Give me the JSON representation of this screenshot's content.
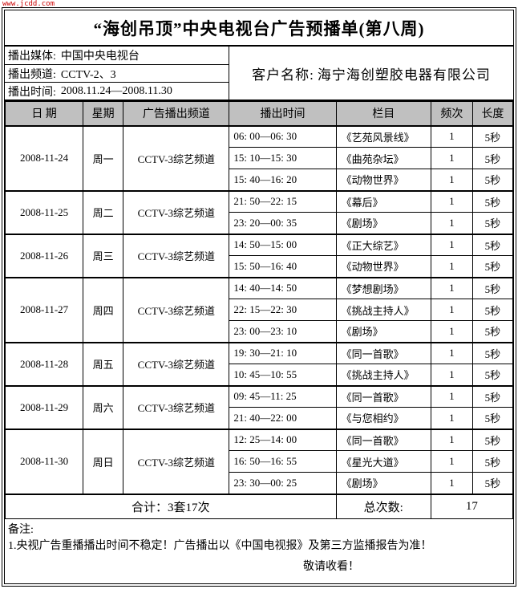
{
  "watermark": "www.jcdd.com",
  "title": "“海创吊顶”中央电视台广告预播单(第八周)",
  "info": {
    "media_label": "播出媒体:",
    "media_value": "中国中央电视台",
    "channel_label": "播出频道:",
    "channel_value": "CCTV-2、3",
    "time_label": "播出时间:",
    "time_value": "2008.11.24—2008.11.30",
    "client_label": "客户名称:",
    "client_value": "海宁海创塑胶电器有限公司"
  },
  "table": {
    "columns": [
      "日  期",
      "星期",
      "广告播出频道",
      "播出时间",
      "栏目",
      "频次",
      "长度"
    ],
    "days": [
      {
        "date": "2008-11-24",
        "week": "周一",
        "channel": "CCTV-3综艺频道",
        "slots": [
          {
            "time": "06: 00—06: 30",
            "program": "《艺苑风景线》",
            "freq": "1",
            "dur": "5秒"
          },
          {
            "time": "15: 10—15: 30",
            "program": "《曲苑杂坛》",
            "freq": "1",
            "dur": "5秒"
          },
          {
            "time": "15: 40—16: 20",
            "program": "《动物世界》",
            "freq": "1",
            "dur": "5秒"
          }
        ]
      },
      {
        "date": "2008-11-25",
        "week": "周二",
        "channel": "CCTV-3综艺频道",
        "slots": [
          {
            "time": "21: 50—22: 15",
            "program": "《幕后》",
            "freq": "1",
            "dur": "5秒"
          },
          {
            "time": "23: 20—00: 35",
            "program": "《剧场》",
            "freq": "1",
            "dur": "5秒"
          }
        ]
      },
      {
        "date": "2008-11-26",
        "week": "周三",
        "channel": "CCTV-3综艺频道",
        "slots": [
          {
            "time": "14: 50—15: 00",
            "program": "《正大综艺》",
            "freq": "1",
            "dur": "5秒"
          },
          {
            "time": "15: 50—16: 40",
            "program": "《动物世界》",
            "freq": "1",
            "dur": "5秒"
          }
        ]
      },
      {
        "date": "2008-11-27",
        "week": "周四",
        "channel": "CCTV-3综艺频道",
        "slots": [
          {
            "time": "14: 40—14: 50",
            "program": "《梦想剧场》",
            "freq": "1",
            "dur": "5秒"
          },
          {
            "time": "22: 15—22: 30",
            "program": "《挑战主持人》",
            "freq": "1",
            "dur": "5秒"
          },
          {
            "time": "23: 00—23: 10",
            "program": "《剧场》",
            "freq": "1",
            "dur": "5秒"
          }
        ]
      },
      {
        "date": "2008-11-28",
        "week": "周五",
        "channel": "CCTV-3综艺频道",
        "slots": [
          {
            "time": "19: 30—21: 10",
            "program": "《同一首歌》",
            "freq": "1",
            "dur": "5秒"
          },
          {
            "time": "10: 45—10: 55",
            "program": "《挑战主持人》",
            "freq": "1",
            "dur": "5秒"
          }
        ]
      },
      {
        "date": "2008-11-29",
        "week": "周六",
        "channel": "CCTV-3综艺频道",
        "slots": [
          {
            "time": "09: 45—11: 25",
            "program": "《同一首歌》",
            "freq": "1",
            "dur": "5秒"
          },
          {
            "time": "21: 40—22: 00",
            "program": "《与您相约》",
            "freq": "1",
            "dur": "5秒"
          }
        ]
      },
      {
        "date": "2008-11-30",
        "week": "周日",
        "channel": "CCTV-3综艺频道",
        "slots": [
          {
            "time": "12: 25—14: 00",
            "program": "《同一首歌》",
            "freq": "1",
            "dur": "5秒"
          },
          {
            "time": "16: 50—16: 55",
            "program": "《星光大道》",
            "freq": "1",
            "dur": "5秒"
          },
          {
            "time": "23: 30—00: 25",
            "program": "《剧场》",
            "freq": "1",
            "dur": "5秒"
          }
        ]
      }
    ],
    "summary": {
      "total_label": "合计：3套17次",
      "count_label": "总次数:",
      "count_value": "17"
    }
  },
  "remarks": {
    "title": "备注:",
    "line1": "1.央视广告重播播出时间不稳定！广告播出以《中国电视报》及第三方监播报告为准！",
    "line2": "敬请收看！"
  },
  "colors": {
    "header_bg": "#c0c0c0",
    "border": "#000000",
    "watermark_red": "#cc0000"
  }
}
